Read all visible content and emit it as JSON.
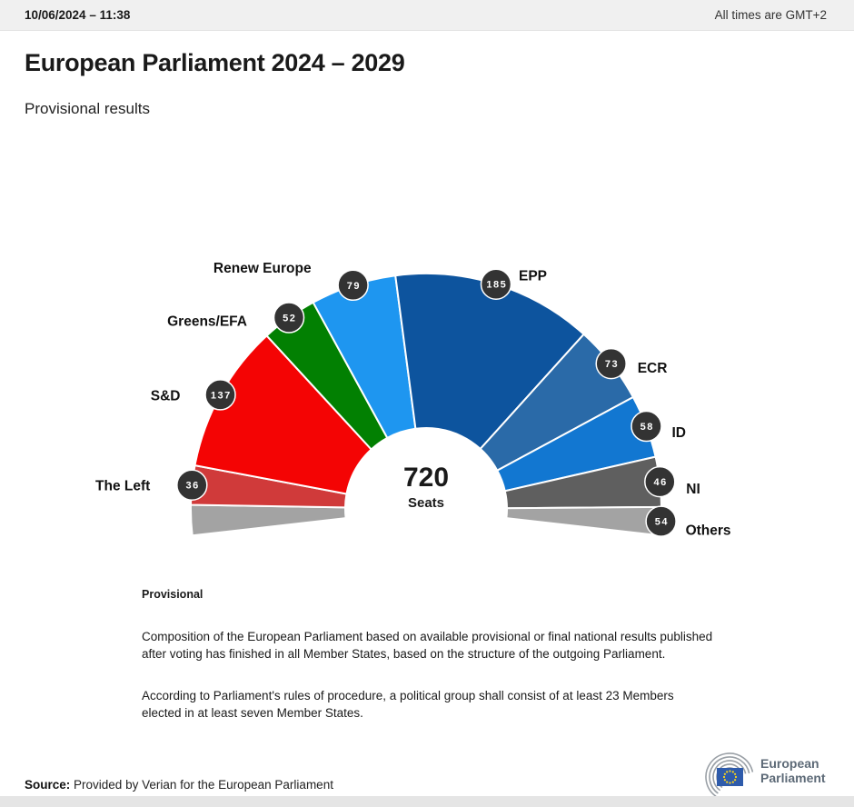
{
  "header": {
    "date": "10/06/2024 – 11:38",
    "timezone_note": "All times are GMT+2"
  },
  "page": {
    "title": "European Parliament 2024 – 2029",
    "subtitle": "Provisional results"
  },
  "chart_data": {
    "type": "pie",
    "variant": "hemicycle",
    "title": "European Parliament 2024 – 2029",
    "total_seats": 720,
    "center_label": "720",
    "center_sublabel": "Seats",
    "groups": [
      {
        "name": "The Left",
        "seats": 36,
        "color": "#d03a3a"
      },
      {
        "name": "S&D",
        "seats": 137,
        "color": "#f40404"
      },
      {
        "name": "Greens/EFA",
        "seats": 52,
        "color": "#028002"
      },
      {
        "name": "Renew Europe",
        "seats": 79,
        "color": "#1e96f0"
      },
      {
        "name": "EPP",
        "seats": 185,
        "color": "#0d549e"
      },
      {
        "name": "ECR",
        "seats": 73,
        "color": "#2a6aa8"
      },
      {
        "name": "ID",
        "seats": 58,
        "color": "#1277d1"
      },
      {
        "name": "NI",
        "seats": 46,
        "color": "#5f5f5f"
      },
      {
        "name": "Others",
        "seats": 54,
        "color": "#a3a3a3"
      }
    ],
    "others_split": {
      "left_seats": 28,
      "right_seats": 26
    },
    "layout": {
      "start_angle": 186.5,
      "end_angle": -6.5,
      "inner_radius": 89,
      "outer_radius": 259,
      "badge_color": "#333333",
      "badge_text_color": "#ffffff",
      "gap_color": "#ffffff"
    }
  },
  "notes": {
    "heading": "Provisional",
    "paragraph1": "Composition of the European Parliament based on available provisional or final national results published after voting has finished in all Member States, based on the structure of the outgoing Parliament.",
    "paragraph2": "According to Parliament's rules of procedure, a political group shall consist of at least 23 Members elected in at least seven Member States."
  },
  "source": {
    "label": "Source:",
    "text": "Provided by Verian for the European Parliament"
  },
  "logo": {
    "line1": "European",
    "line2": "Parliament"
  }
}
